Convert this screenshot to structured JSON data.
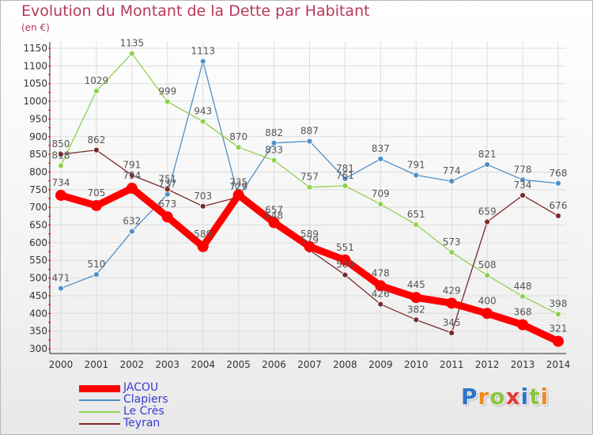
{
  "header": {
    "title": "Evolution du Montant de la Dette par Habitant",
    "unit": "(en €)"
  },
  "brand": {
    "logo_text": "Proxiti",
    "letter_colors": [
      "#2f74c8",
      "#f08a1c",
      "#8bc53f",
      "#e53935",
      "#2f74c8",
      "#8bc53f",
      "#f08a1c"
    ]
  },
  "chart_data": {
    "type": "line",
    "title": "Evolution du Montant de la Dette par Habitant",
    "subtitle": "(en €)",
    "xlabel": "",
    "ylabel": "",
    "x": [
      "2000",
      "2001",
      "2002",
      "2003",
      "2004",
      "2005",
      "2006",
      "2007",
      "2008",
      "2009",
      "2010",
      "2011",
      "2012",
      "2013",
      "2014"
    ],
    "ylim": [
      300,
      1150
    ],
    "yticks": [
      300,
      350,
      400,
      450,
      500,
      550,
      600,
      650,
      700,
      750,
      800,
      850,
      900,
      950,
      1000,
      1050,
      1100,
      1150
    ],
    "grid": true,
    "legend_position": "bottom-left",
    "series": [
      {
        "name": "JACOU",
        "color": "#ff0000",
        "values": [
          734,
          705,
          754,
          673,
          589,
          735,
          657,
          589,
          551,
          478,
          445,
          429,
          400,
          368,
          321
        ],
        "labels": [
          "734",
          "705",
          "754",
          "673",
          "589",
          "735",
          "657",
          "589",
          "551",
          "478",
          "445",
          "429",
          "400",
          "368",
          "321"
        ]
      },
      {
        "name": "Clapiers",
        "color": "#4f8fc6",
        "values": [
          471,
          510,
          632,
          737,
          1113,
          729,
          882,
          887,
          781,
          837,
          791,
          774,
          821,
          778,
          768
        ],
        "labels": [
          "471",
          "510",
          "632",
          "737",
          "1113",
          "729",
          "882",
          "887",
          "781",
          "837",
          "791",
          "774",
          "821",
          "778",
          "768"
        ]
      },
      {
        "name": "Le Crès",
        "color": "#8fd14f",
        "values": [
          818,
          1029,
          1135,
          999,
          943,
          870,
          833,
          757,
          761,
          709,
          651,
          573,
          508,
          448,
          398
        ],
        "labels": [
          "818",
          "1029",
          "1135",
          "999",
          "943",
          "870",
          "833",
          "757",
          "761",
          "709",
          "651",
          "573",
          "508",
          "448",
          "398"
        ]
      },
      {
        "name": "Teyran",
        "color": "#7a2a2a",
        "values": [
          850,
          862,
          791,
          751,
          703,
          729,
          648,
          579,
          509,
          426,
          382,
          345,
          659,
          734,
          676
        ],
        "labels": [
          "850",
          "862",
          "791",
          "751",
          "703",
          "729",
          "648",
          "579",
          "509",
          "426",
          "382",
          "345",
          "659",
          "734",
          "676"
        ]
      }
    ]
  },
  "legend": {
    "items": [
      {
        "label": "JACOU",
        "color": "#ff0000"
      },
      {
        "label": "Clapiers",
        "color": "#4f8fc6"
      },
      {
        "label": "Le Crès",
        "color": "#8fd14f"
      },
      {
        "label": "Teyran",
        "color": "#7a2a2a"
      }
    ]
  }
}
